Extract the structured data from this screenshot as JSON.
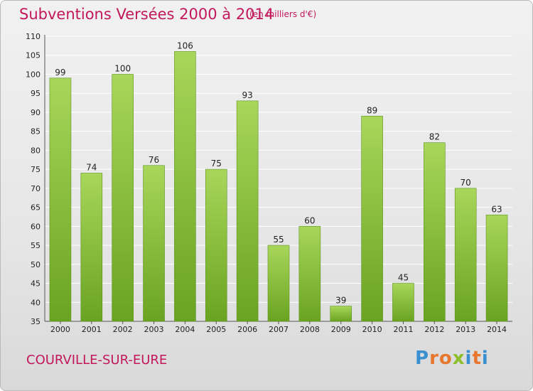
{
  "header": {
    "title": "Subventions Versées 2000 à 2014",
    "subtitle": "(en milliers d'€)"
  },
  "footer": {
    "place": "COURVILLE-SUR-EURE",
    "logo_letters": [
      "P",
      "r",
      "o",
      "x",
      "i",
      "t",
      "i"
    ],
    "logo_colors": [
      "#3a8fd0",
      "#e8772e",
      "#e8772e",
      "#8cbf2a",
      "#3a8fd0",
      "#e8772e",
      "#3a8fd0"
    ]
  },
  "chart_data": {
    "type": "bar",
    "categories": [
      "2000",
      "2001",
      "2002",
      "2003",
      "2004",
      "2005",
      "2006",
      "2007",
      "2008",
      "2009",
      "2010",
      "2011",
      "2012",
      "2013",
      "2014"
    ],
    "values": [
      99,
      74,
      100,
      76,
      106,
      75,
      93,
      55,
      60,
      39,
      89,
      45,
      82,
      70,
      63
    ],
    "ylim": [
      35,
      110
    ],
    "yticks": [
      35,
      40,
      45,
      50,
      55,
      60,
      65,
      70,
      75,
      80,
      85,
      90,
      95,
      100,
      105,
      110
    ],
    "grid": true,
    "bar_color_light": "#a8d65a",
    "bar_color_dark": "#6aa321",
    "grid_color": "#ffffff"
  }
}
